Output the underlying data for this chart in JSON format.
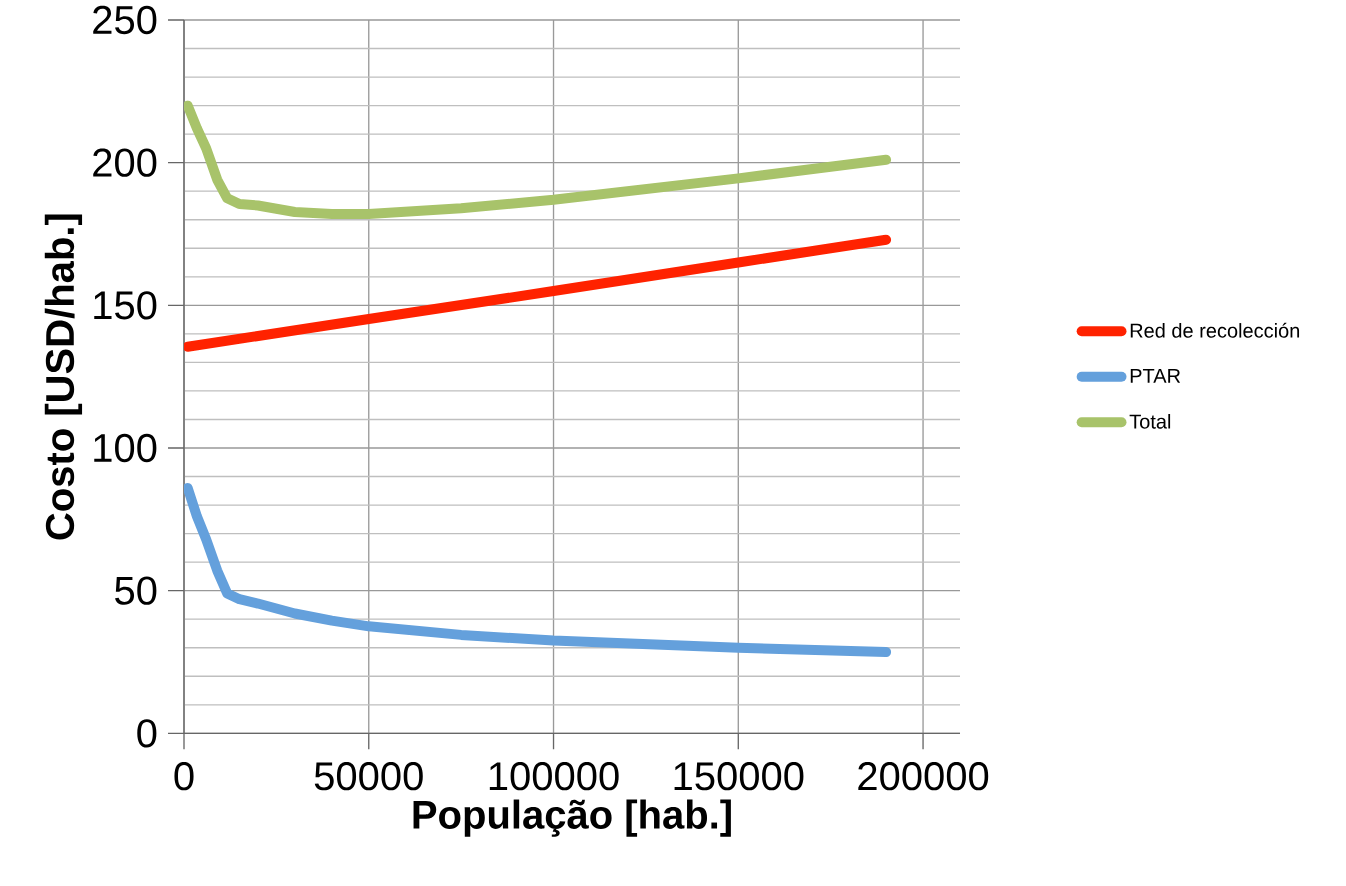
{
  "chart_data": {
    "type": "line",
    "xlabel": "População [hab.]",
    "ylabel": "Costo [USD/hab.]",
    "xlim": [
      0,
      210000
    ],
    "xticks": [
      0,
      50000,
      100000,
      150000,
      200000
    ],
    "ylim": [
      0,
      250
    ],
    "yticks": [
      0,
      {
        "value": 10,
        "label": null
      },
      {
        "value": 20,
        "label": null
      },
      {
        "value": 30,
        "label": null
      },
      {
        "value": 40,
        "label": null
      },
      50,
      {
        "value": 60,
        "label": null
      },
      {
        "value": 70,
        "label": null
      },
      {
        "value": 80,
        "label": null
      },
      {
        "value": 90,
        "label": null
      },
      100,
      {
        "value": 110,
        "label": null
      },
      {
        "value": 120,
        "label": null
      },
      {
        "value": 130,
        "label": null
      },
      {
        "value": 140,
        "label": null
      },
      150,
      {
        "value": 160,
        "label": null
      },
      {
        "value": 170,
        "label": null
      },
      {
        "value": 180,
        "label": null
      },
      {
        "value": 190,
        "label": null
      },
      200,
      {
        "value": 210,
        "label": null
      },
      {
        "value": 220,
        "label": null
      },
      {
        "value": 230,
        "label": null
      },
      {
        "value": 240,
        "label": null
      },
      250
    ],
    "grid": true,
    "legend": "right",
    "marker": "none",
    "line_style": "solid",
    "series": [
      {
        "name": "Red de recolección",
        "color": "#ff2200",
        "x": [
          1000,
          50000,
          100000,
          150000,
          190000
        ],
        "values": [
          135.5,
          145.2,
          155,
          165,
          173
        ]
      },
      {
        "name": "PTAR",
        "color": "#64a0dc",
        "x": [
          1000,
          3500,
          6000,
          9000,
          11700,
          15000,
          20000,
          30000,
          40000,
          50000,
          75000,
          100000,
          150000,
          190000
        ],
        "values": [
          86,
          76,
          68,
          57,
          49,
          47,
          45.5,
          42,
          39.5,
          37.5,
          34.5,
          32.5,
          30,
          28.5
        ]
      },
      {
        "name": "Total",
        "color": "#a8c36a",
        "x": [
          1000,
          3500,
          6000,
          9000,
          11700,
          15000,
          20000,
          30000,
          40000,
          50000,
          75000,
          100000,
          150000,
          190000
        ],
        "values": [
          220,
          212,
          205,
          194,
          187.5,
          185.5,
          185,
          182.7,
          182,
          182,
          184,
          187,
          194.5,
          201
        ]
      }
    ]
  }
}
